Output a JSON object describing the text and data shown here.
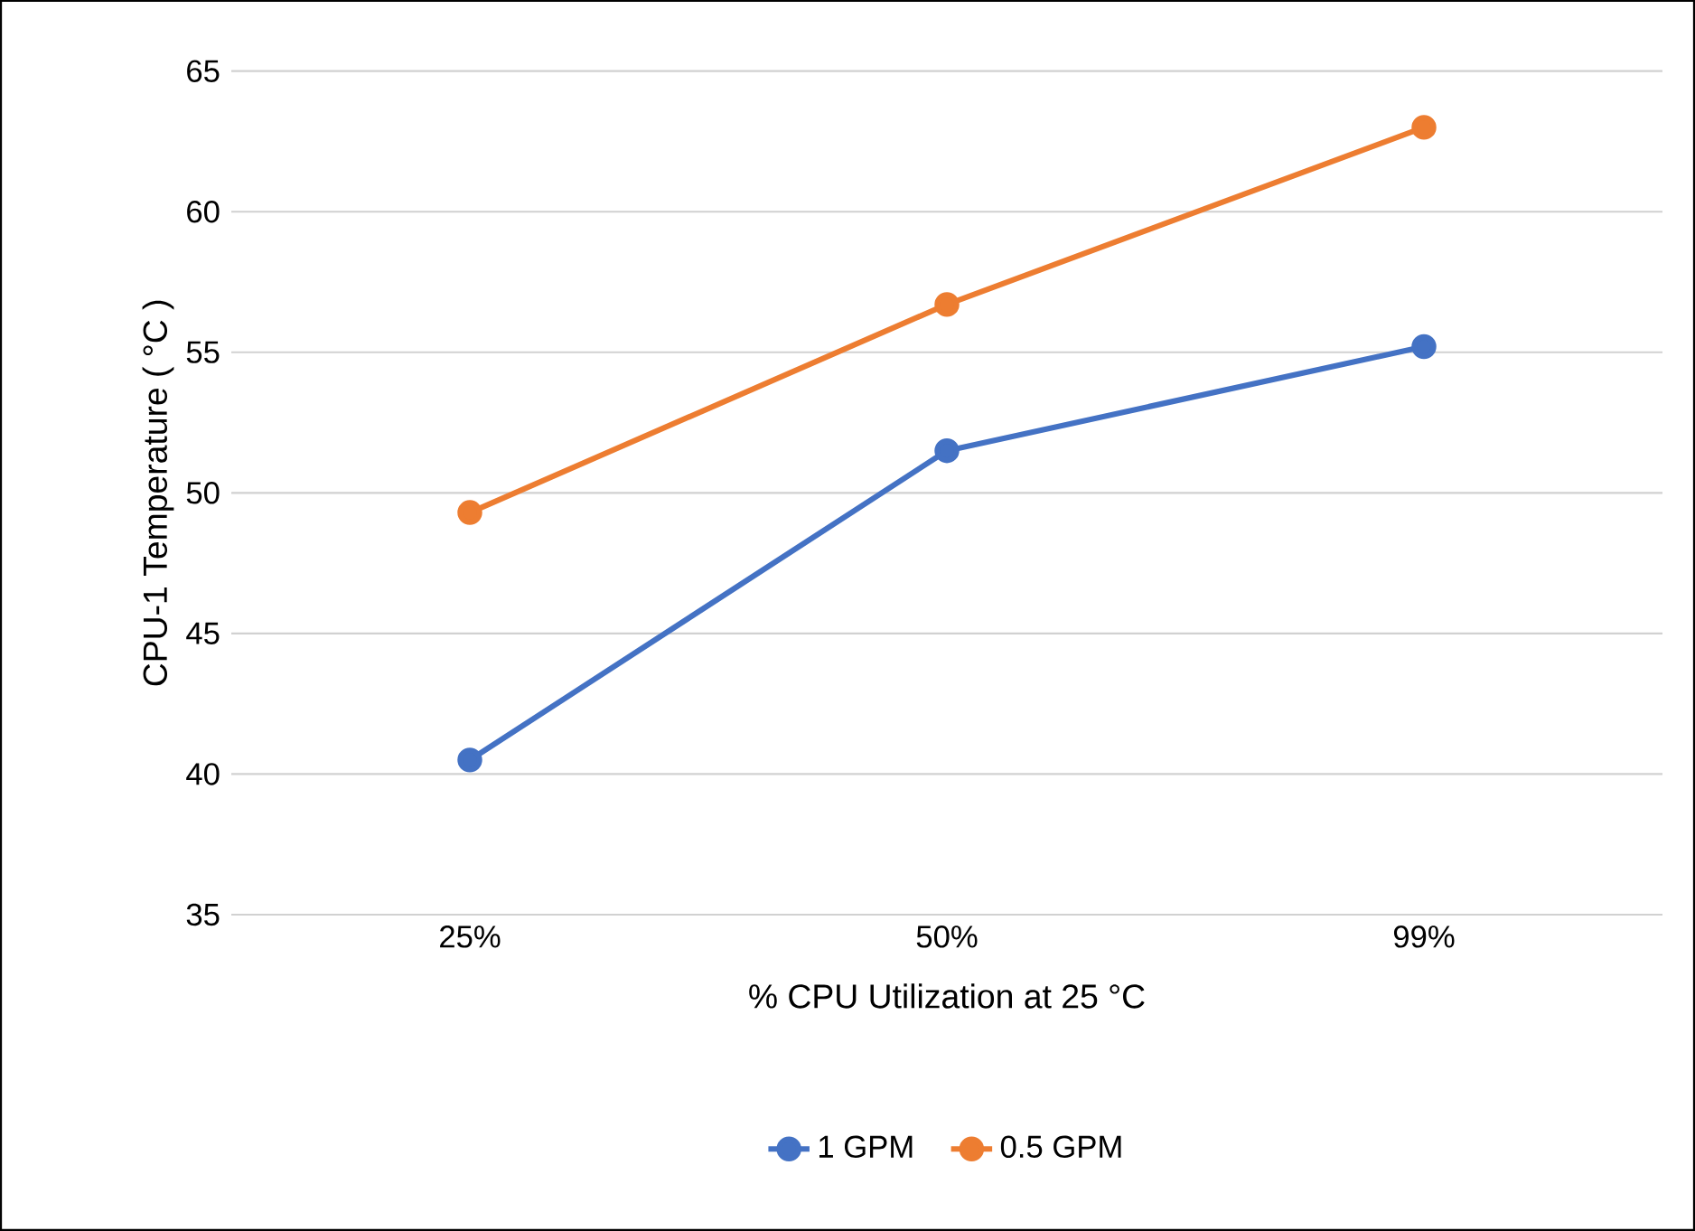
{
  "chart_data": {
    "type": "line",
    "xlabel": "% CPU Utilization at 25 °C",
    "ylabel": "CPU-1 Temperature ( °C )",
    "categories": [
      "25%",
      "50%",
      "99%"
    ],
    "series": [
      {
        "name": "1 GPM",
        "color": "#4472c4",
        "values": [
          40.5,
          51.5,
          55.2
        ]
      },
      {
        "name": "0.5 GPM",
        "color": "#ed7d31",
        "values": [
          49.3,
          56.7,
          63.0
        ]
      }
    ],
    "ylim": [
      35,
      65
    ],
    "yticks": [
      35,
      40,
      45,
      50,
      55,
      60,
      65
    ],
    "grid": "y",
    "legend": "bottom",
    "marker": "circle",
    "line_style": "solid"
  }
}
